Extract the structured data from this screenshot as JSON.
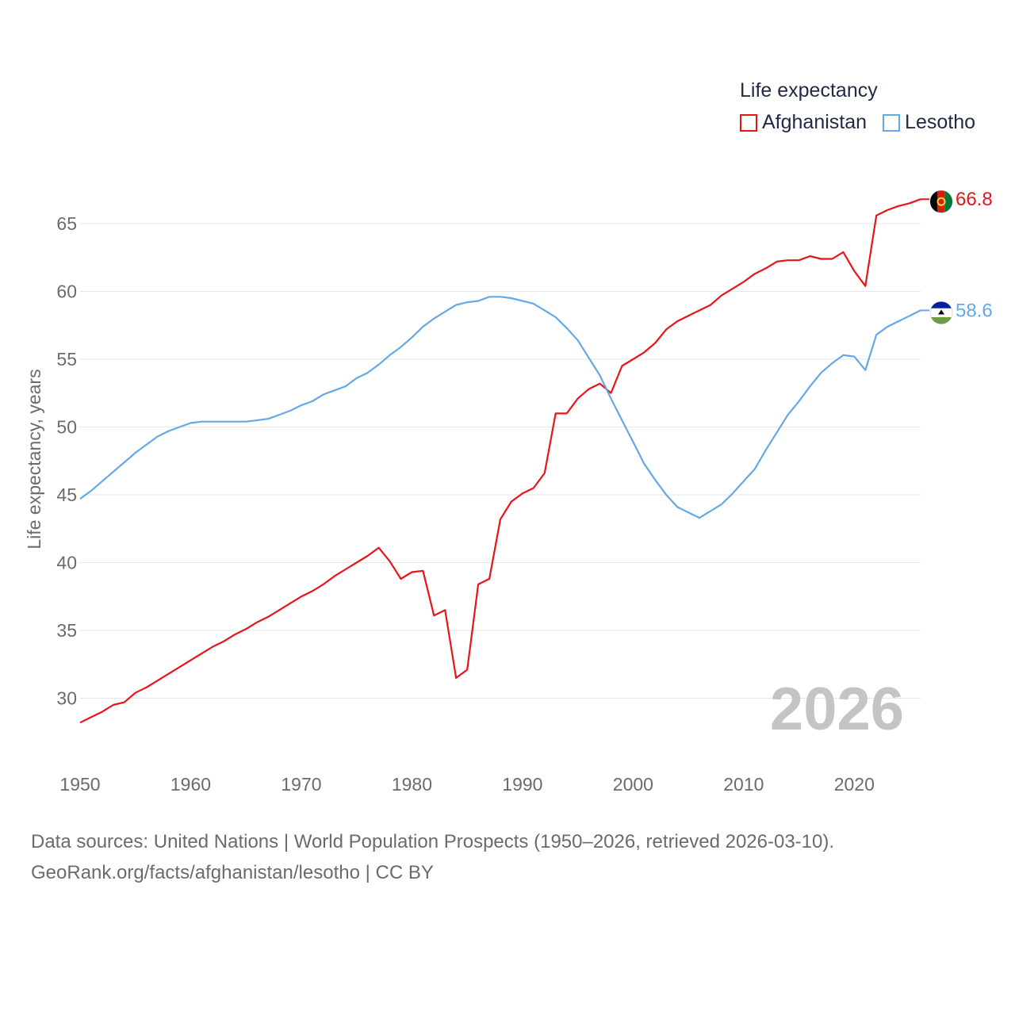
{
  "legend": {
    "title": "Life expectancy",
    "items": [
      {
        "name": "Afghanistan",
        "color": "#e8141a"
      },
      {
        "name": "Lesotho",
        "color": "#64a8e6"
      }
    ]
  },
  "footer": {
    "line1": "Data sources: United Nations | World Population Prospects (1950–2026, retrieved 2026-03-10).",
    "line2": "GeoRank.org/facts/afghanistan/lesotho | CC BY"
  },
  "chart_data": {
    "type": "line",
    "title": "Life expectancy",
    "xlabel": "",
    "ylabel": "Life expectancy, years",
    "xlim": [
      1950,
      2026
    ],
    "ylim": [
      25,
      68
    ],
    "x_ticks": [
      1950,
      1960,
      1970,
      1980,
      1990,
      2000,
      2010,
      2020
    ],
    "y_ticks": [
      30,
      35,
      40,
      45,
      50,
      55,
      60,
      65
    ],
    "grid": true,
    "legend_position": "top-right",
    "year_label": "2026",
    "x": [
      1950,
      1951,
      1952,
      1953,
      1954,
      1955,
      1956,
      1957,
      1958,
      1959,
      1960,
      1961,
      1962,
      1963,
      1964,
      1965,
      1966,
      1967,
      1968,
      1969,
      1970,
      1971,
      1972,
      1973,
      1974,
      1975,
      1976,
      1977,
      1978,
      1979,
      1980,
      1981,
      1982,
      1983,
      1984,
      1985,
      1986,
      1987,
      1988,
      1989,
      1990,
      1991,
      1992,
      1993,
      1994,
      1995,
      1996,
      1997,
      1998,
      1999,
      2000,
      2001,
      2002,
      2003,
      2004,
      2005,
      2006,
      2007,
      2008,
      2009,
      2010,
      2011,
      2012,
      2013,
      2014,
      2015,
      2016,
      2017,
      2018,
      2019,
      2020,
      2021,
      2022,
      2023,
      2024,
      2025,
      2026
    ],
    "series": [
      {
        "name": "Afghanistan",
        "color": "#e8141a",
        "end_label": "66.8",
        "values": [
          28.2,
          28.6,
          29.0,
          29.5,
          29.7,
          30.4,
          30.8,
          31.3,
          31.8,
          32.3,
          32.8,
          33.3,
          33.8,
          34.2,
          34.7,
          35.1,
          35.6,
          36.0,
          36.5,
          37.0,
          37.5,
          37.9,
          38.4,
          39.0,
          39.5,
          40.0,
          40.5,
          41.1,
          40.1,
          38.8,
          39.3,
          39.4,
          36.1,
          36.5,
          31.5,
          32.1,
          38.4,
          38.8,
          43.2,
          44.5,
          45.1,
          45.5,
          46.6,
          51.0,
          51.0,
          52.1,
          52.8,
          53.2,
          52.5,
          54.5,
          55.0,
          55.5,
          56.2,
          57.2,
          57.8,
          58.2,
          58.6,
          59.0,
          59.7,
          60.2,
          60.7,
          61.3,
          61.7,
          62.2,
          62.3,
          62.3,
          62.6,
          62.4,
          62.4,
          62.9,
          61.5,
          60.4,
          65.6,
          66.0,
          66.3,
          66.5,
          66.8
        ]
      },
      {
        "name": "Lesotho",
        "color": "#64a8e6",
        "end_label": "58.6",
        "values": [
          44.7,
          45.3,
          46.0,
          46.7,
          47.4,
          48.1,
          48.7,
          49.3,
          49.7,
          50.0,
          50.3,
          50.4,
          50.4,
          50.4,
          50.4,
          50.4,
          50.5,
          50.6,
          50.9,
          51.2,
          51.6,
          51.9,
          52.4,
          52.7,
          53.0,
          53.6,
          54.0,
          54.6,
          55.3,
          55.9,
          56.6,
          57.4,
          58.0,
          58.5,
          59.0,
          59.2,
          59.3,
          59.6,
          59.6,
          59.5,
          59.3,
          59.1,
          58.6,
          58.1,
          57.3,
          56.4,
          55.1,
          53.8,
          52.1,
          50.5,
          48.9,
          47.3,
          46.1,
          45.0,
          44.1,
          43.7,
          43.3,
          43.8,
          44.3,
          45.1,
          46.0,
          46.9,
          48.3,
          49.6,
          50.9,
          51.9,
          53.0,
          54.0,
          54.7,
          55.3,
          55.2,
          54.2,
          56.8,
          57.4,
          57.8,
          58.2,
          58.6
        ]
      }
    ]
  }
}
